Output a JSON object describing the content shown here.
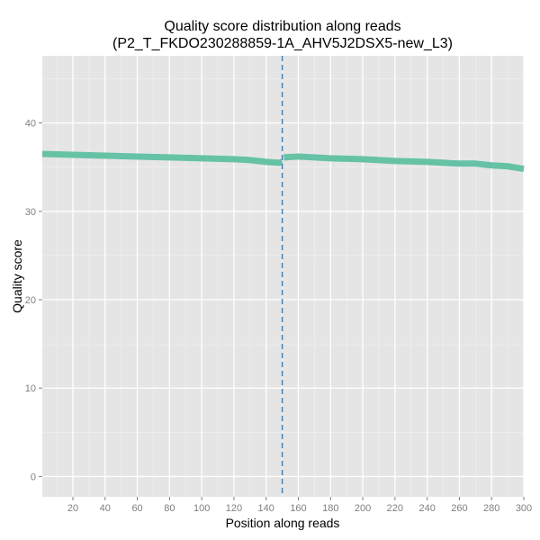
{
  "chart_data": {
    "type": "line",
    "title_line1": "Quality score distribution along reads",
    "title_line2": "(P2_T_FKDO230288859-1A_AHV5J2DSX5-new_L3)",
    "xlabel": "Position along reads",
    "ylabel": "Quality score",
    "xlim": [
      1,
      300
    ],
    "ylim": [
      -2.3,
      47.6
    ],
    "x_ticks": [
      20,
      40,
      60,
      80,
      100,
      120,
      140,
      160,
      180,
      200,
      220,
      240,
      260,
      280,
      300
    ],
    "y_ticks": [
      0,
      10,
      20,
      30,
      40
    ],
    "grid": true,
    "vline_x": 150,
    "colors": {
      "line": "#66c2a5",
      "vline": "#3a7fb8",
      "panel": "#e5e5e5",
      "grid_major": "#ffffff",
      "grid_minor": "#f2f2f2"
    },
    "series": [
      {
        "segments": [
          {
            "x": [
              1,
              20,
              40,
              60,
              80,
              100,
              120,
              130,
              140,
              148,
              150
            ],
            "y": [
              36.5,
              36.4,
              36.3,
              36.2,
              36.1,
              36.0,
              35.9,
              35.8,
              35.6,
              35.5,
              35.6
            ]
          },
          {
            "x": [
              151,
              160,
              180,
              200,
              220,
              240,
              260,
              270,
              280,
              290,
              300
            ],
            "y": [
              36.1,
              36.2,
              36.0,
              35.9,
              35.7,
              35.6,
              35.4,
              35.4,
              35.2,
              35.1,
              34.8
            ]
          }
        ]
      }
    ]
  }
}
